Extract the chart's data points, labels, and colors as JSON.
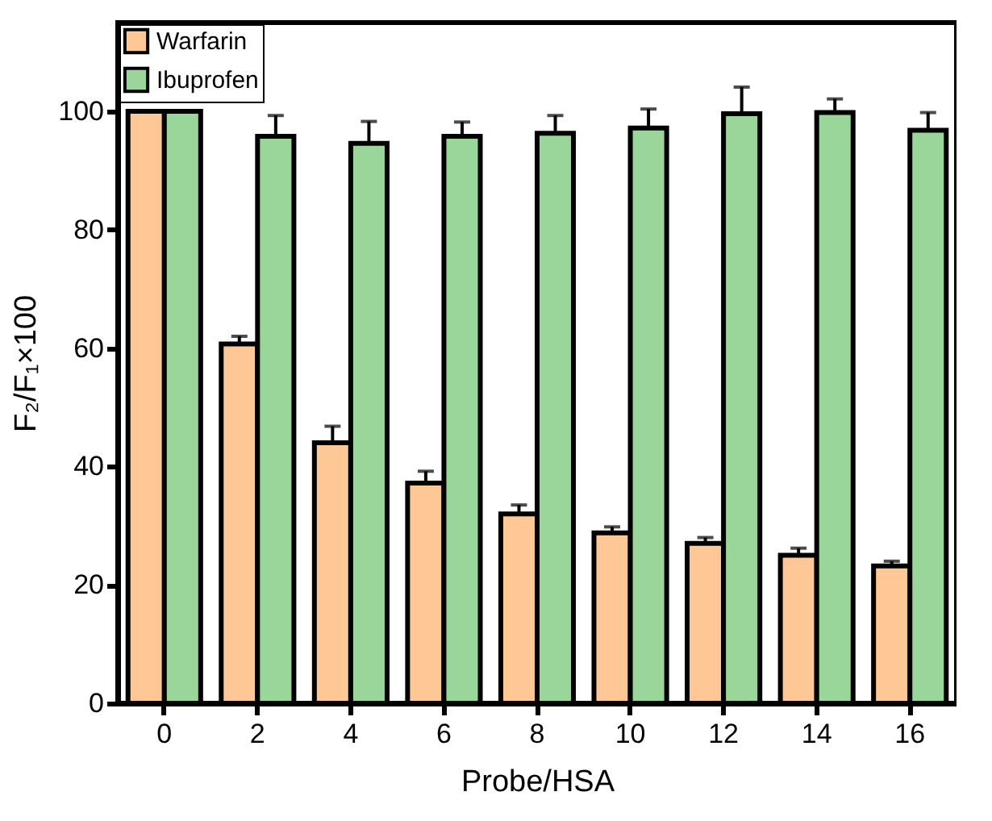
{
  "chart_data": {
    "type": "bar",
    "xlabel": "Probe/HSA",
    "ylabel": "F₂/F₁×100",
    "categories": [
      "0",
      "2",
      "4",
      "6",
      "8",
      "10",
      "12",
      "14",
      "16"
    ],
    "series": [
      {
        "name": "Warfarin",
        "color": "#fdc896",
        "values": [
          100,
          60.7,
          44,
          37.2,
          32,
          28.8,
          27,
          25,
          23.2
        ],
        "errors": [
          null,
          1.3,
          2.8,
          2,
          1.5,
          1,
          1,
          1.2,
          0.8
        ]
      },
      {
        "name": "Ibuprofen",
        "color": "#9ad59a",
        "values": [
          100,
          95.8,
          94.6,
          95.8,
          96.3,
          97.2,
          99.6,
          99.8,
          96.8
        ],
        "errors": [
          null,
          3.5,
          3.7,
          2.4,
          3,
          3.2,
          4.5,
          2.3,
          3
        ]
      }
    ],
    "ylim": [
      0,
      115
    ],
    "yticks": [
      0,
      20,
      40,
      60,
      80,
      100
    ],
    "grid": false,
    "legend": "top left"
  }
}
